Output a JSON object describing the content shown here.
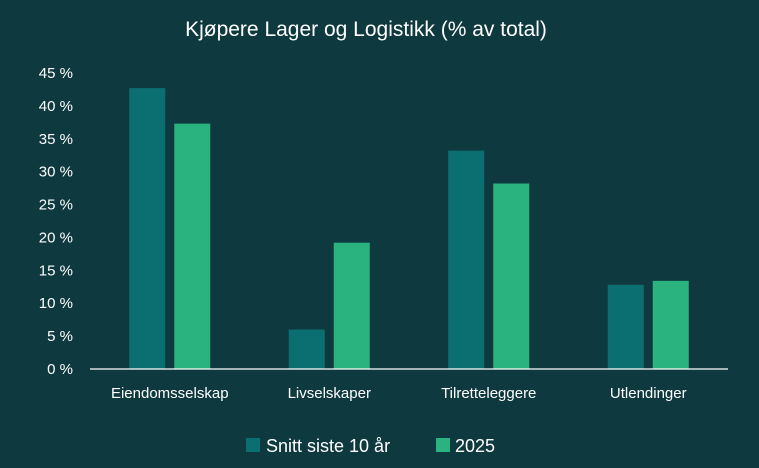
{
  "chart_data": {
    "type": "bar",
    "title": "Kjøpere Lager og Logistikk (% av total)",
    "categories": [
      "Eiendomsselskap",
      "Livselskaper",
      "Tilretteleggere",
      "Utlendinger"
    ],
    "series": [
      {
        "name": "Snitt siste 10 år",
        "color": "#0b6f72",
        "values": [
          42.7,
          6.0,
          33.2,
          12.8
        ]
      },
      {
        "name": "2025",
        "color": "#2ab27f",
        "values": [
          37.3,
          19.2,
          28.2,
          13.4
        ]
      }
    ],
    "y_ticks": [
      "0 %",
      "5 %",
      "10 %",
      "15 %",
      "20 %",
      "25 %",
      "30 %",
      "35 %",
      "40 %",
      "45 %"
    ],
    "ylim": [
      0,
      45
    ],
    "grid": false,
    "legend_position": "bottom"
  }
}
